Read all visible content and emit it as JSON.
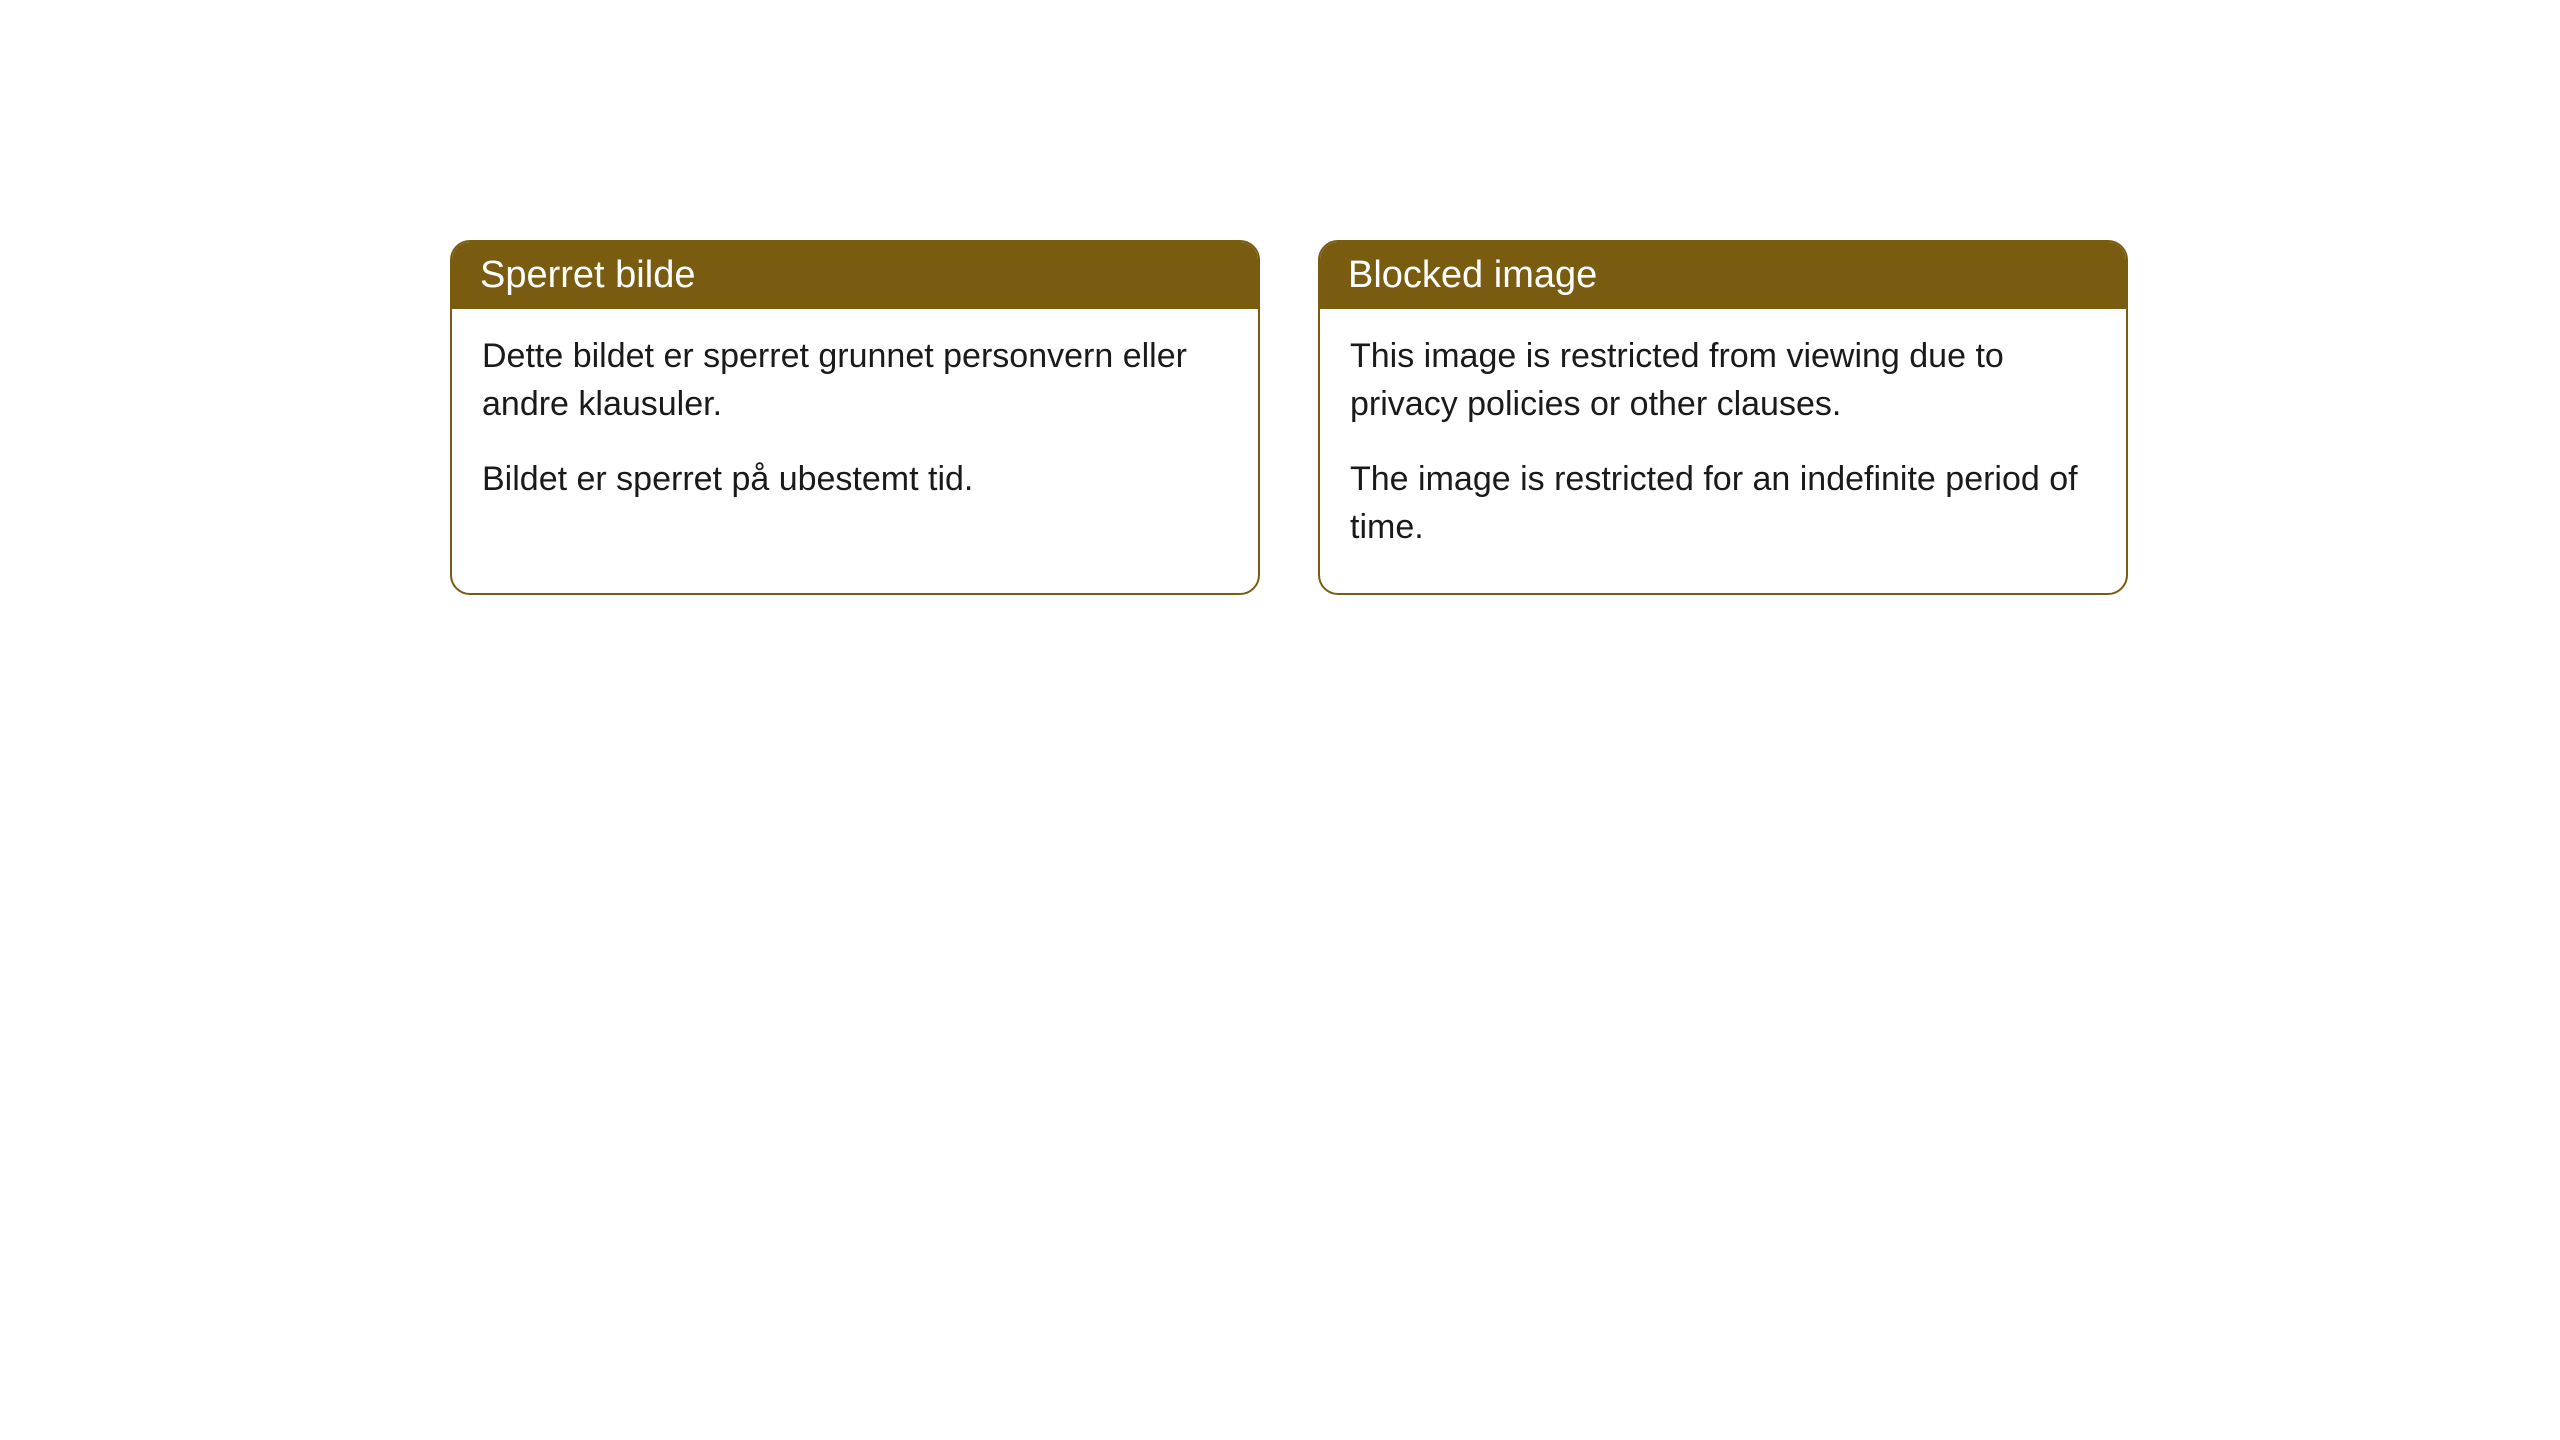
{
  "cards": [
    {
      "title": "Sperret bilde",
      "paragraph1": "Dette bildet er sperret grunnet personvern eller andre klausuler.",
      "paragraph2": "Bildet er sperret på ubestemt tid."
    },
    {
      "title": "Blocked image",
      "paragraph1": "This image is restricted from viewing due to privacy policies or other clauses.",
      "paragraph2": "The image is restricted for an indefinite period of time."
    }
  ],
  "style": {
    "header_bg_color": "#7a5c10",
    "header_text_color": "#ffffff",
    "border_color": "#7a5c10",
    "body_bg_color": "#ffffff",
    "body_text_color": "#1a1a1a",
    "border_radius": 20,
    "header_fontsize": 38,
    "body_fontsize": 34
  }
}
